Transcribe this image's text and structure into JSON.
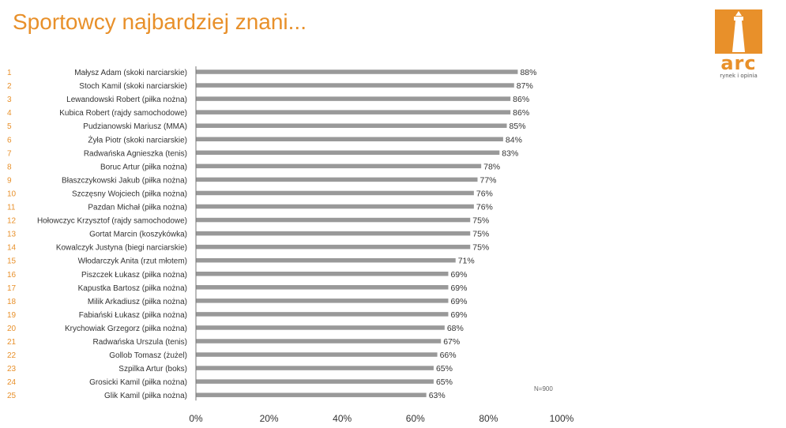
{
  "title": "Sportowcy najbardziej znani...",
  "logo": {
    "word": "arc",
    "tagline": "rynek i opinia"
  },
  "note": "N=900",
  "colors": {
    "accent": "#e8902a",
    "bar": "#999999",
    "text": "#333333",
    "axis": "#777777"
  },
  "chart_data": {
    "type": "bar",
    "orientation": "horizontal",
    "ranks": [
      "1",
      "2",
      "3",
      "4",
      "5",
      "6",
      "7",
      "8",
      "9",
      "10",
      "11",
      "12",
      "13",
      "14",
      "15",
      "16",
      "17",
      "18",
      "19",
      "20",
      "21",
      "22",
      "23",
      "24",
      "25"
    ],
    "categories": [
      "Małysz Adam (skoki narciarskie)",
      "Stoch Kamil (skoki narciarskie)",
      "Lewandowski Robert (piłka nożna)",
      "Kubica Robert (rajdy samochodowe)",
      "Pudzianowski Mariusz (MMA)",
      "Żyła Piotr (skoki narciarskie)",
      "Radwańska Agnieszka (tenis)",
      "Boruc Artur (piłka nożna)",
      "Błaszczykowski Jakub (piłka nożna)",
      "Szczęsny Wojciech (piłka nożna)",
      "Pazdan Michał (piłka nożna)",
      "Hołowczyc Krzysztof (rajdy samochodowe)",
      "Gortat Marcin (koszykówka)",
      "Kowalczyk Justyna (biegi narciarskie)",
      "Włodarczyk Anita (rzut młotem)",
      "Piszczek Łukasz (piłka nożna)",
      "Kapustka Bartosz (piłka nożna)",
      "Milik Arkadiusz (piłka nożna)",
      "Fabiański Łukasz (piłka nożna)",
      "Krychowiak Grzegorz (piłka nożna)",
      "Radwańska Urszula (tenis)",
      "Gollob Tomasz (żużel)",
      "Szpilka Artur (boks)",
      "Grosicki Kamil (piłka nożna)",
      "Glik Kamil (piłka nożna)"
    ],
    "values": [
      88,
      87,
      86,
      86,
      85,
      84,
      83,
      78,
      77,
      76,
      76,
      75,
      75,
      75,
      71,
      69,
      69,
      69,
      69,
      68,
      67,
      66,
      65,
      65,
      63
    ],
    "value_labels": [
      "88%",
      "87%",
      "86%",
      "86%",
      "85%",
      "84%",
      "83%",
      "78%",
      "77%",
      "76%",
      "76%",
      "75%",
      "75%",
      "75%",
      "71%",
      "69%",
      "69%",
      "69%",
      "69%",
      "68%",
      "67%",
      "66%",
      "65%",
      "65%",
      "63%"
    ],
    "xticks": [
      "0%",
      "20%",
      "40%",
      "60%",
      "80%",
      "100%"
    ],
    "xlim": [
      0,
      100
    ],
    "grid": false,
    "legend": "none"
  }
}
